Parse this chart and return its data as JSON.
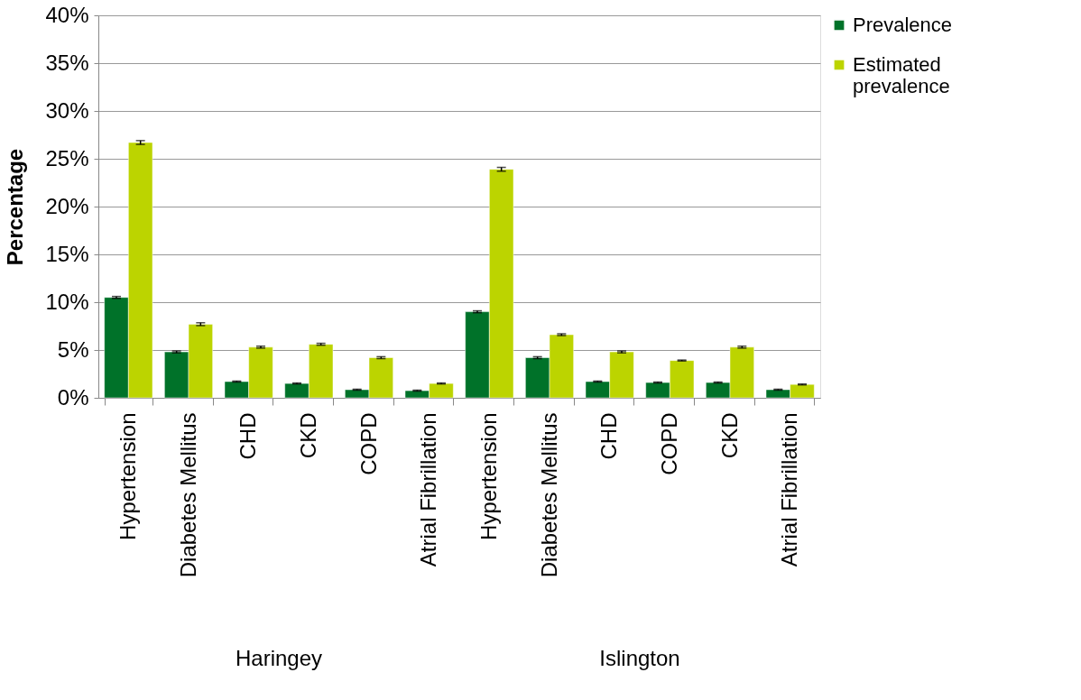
{
  "chart_data": {
    "type": "bar",
    "ylabel": "Percentage",
    "categories": [
      "Hypertension",
      "Diabetes Mellitus",
      "CHD",
      "CKD",
      "COPD",
      "Atrial Fibrillation",
      "Hypertension",
      "Diabetes Mellitus",
      "CHD",
      "COPD",
      "CKD",
      "Atrial Fibrillation"
    ],
    "series": [
      {
        "name": "Prevalence",
        "color": "#007229",
        "values": [
          10.5,
          4.8,
          1.7,
          1.5,
          0.85,
          0.75,
          9.0,
          4.2,
          1.7,
          1.6,
          1.6,
          0.85
        ],
        "errors": [
          0.1,
          0.1,
          0.05,
          0.05,
          0.05,
          0.05,
          0.1,
          0.1,
          0.05,
          0.05,
          0.05,
          0.05
        ]
      },
      {
        "name": "Estimated prevalence",
        "color": "#bcd400",
        "values": [
          26.7,
          7.7,
          5.3,
          5.6,
          4.2,
          1.5,
          23.9,
          6.6,
          4.8,
          3.9,
          5.3,
          1.4
        ],
        "errors": [
          0.2,
          0.15,
          0.1,
          0.1,
          0.1,
          0.05,
          0.2,
          0.1,
          0.1,
          0.05,
          0.1,
          0.05
        ]
      }
    ],
    "ylim": [
      0,
      40
    ],
    "yticks": [
      {
        "value": 0,
        "label": "0%"
      },
      {
        "value": 5,
        "label": "5%"
      },
      {
        "value": 10,
        "label": "10%"
      },
      {
        "value": 15,
        "label": "15%"
      },
      {
        "value": 20,
        "label": "20%"
      },
      {
        "value": 25,
        "label": "25%"
      },
      {
        "value": 30,
        "label": "30%"
      },
      {
        "value": 35,
        "label": "35%"
      },
      {
        "value": 40,
        "label": "40%"
      }
    ],
    "grid": "y",
    "legend": "top right",
    "annotations": [
      "Haringey",
      "Islington"
    ]
  }
}
